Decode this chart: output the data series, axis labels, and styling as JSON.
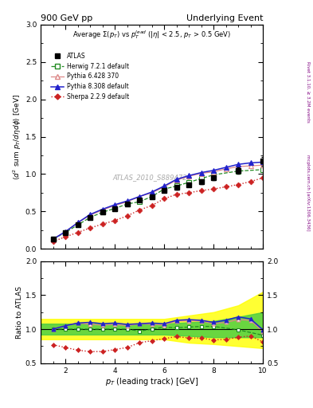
{
  "title_top": "900 GeV pp",
  "title_right": "Underlying Event",
  "xlabel": "$p_T$ (leading track) [GeV]",
  "ylabel_main": "$\\langle d^2$ sum $p_T/d\\eta d\\phi\\rangle$ [GeV]",
  "ylabel_ratio": "Ratio to ATLAS",
  "watermark": "ATLAS_2010_S8894728",
  "right_label": "mcplots.cern.ch [arXiv:1306.3436]",
  "right_label2": "Rivet 3.1.10, ≥ 3.2M events",
  "xlim": [
    1,
    10
  ],
  "ylim_main": [
    0,
    3
  ],
  "ylim_ratio": [
    0.5,
    2.0
  ],
  "atlas_x": [
    1.5,
    2.0,
    2.5,
    3.0,
    3.5,
    4.0,
    4.5,
    5.0,
    5.5,
    6.0,
    6.5,
    7.0,
    7.5,
    8.0,
    9.0,
    10.0
  ],
  "atlas_y": [
    0.13,
    0.22,
    0.32,
    0.42,
    0.49,
    0.54,
    0.6,
    0.65,
    0.7,
    0.78,
    0.82,
    0.86,
    0.9,
    0.95,
    1.05,
    1.17
  ],
  "atlas_yerr": [
    0.01,
    0.01,
    0.01,
    0.01,
    0.01,
    0.01,
    0.015,
    0.02,
    0.02,
    0.025,
    0.025,
    0.03,
    0.03,
    0.03,
    0.04,
    0.06
  ],
  "herwig_x": [
    1.5,
    2.0,
    2.5,
    3.0,
    3.5,
    4.0,
    4.5,
    5.0,
    5.5,
    6.0,
    6.5,
    7.0,
    7.5,
    8.0,
    9.0,
    10.0
  ],
  "herwig_y": [
    0.13,
    0.22,
    0.32,
    0.42,
    0.49,
    0.54,
    0.6,
    0.63,
    0.7,
    0.8,
    0.84,
    0.89,
    0.94,
    0.99,
    1.04,
    1.06
  ],
  "pythia6_x": [
    1.5,
    2.0,
    2.5,
    3.0,
    3.5,
    4.0,
    4.5,
    5.0,
    5.5,
    6.0,
    6.5,
    7.0,
    7.5,
    8.0,
    8.5,
    9.0,
    9.5,
    10.0
  ],
  "pythia6_y": [
    0.13,
    0.23,
    0.35,
    0.45,
    0.52,
    0.58,
    0.63,
    0.7,
    0.75,
    0.83,
    0.92,
    0.97,
    1.01,
    1.03,
    1.07,
    1.1,
    1.11,
    1.12
  ],
  "pythia8_x": [
    1.5,
    2.0,
    2.5,
    3.0,
    3.5,
    4.0,
    4.5,
    5.0,
    5.5,
    6.0,
    6.5,
    7.0,
    7.5,
    8.0,
    8.5,
    9.0,
    9.5,
    10.0
  ],
  "pythia8_y": [
    0.13,
    0.23,
    0.35,
    0.46,
    0.53,
    0.59,
    0.64,
    0.7,
    0.76,
    0.84,
    0.93,
    0.98,
    1.02,
    1.05,
    1.09,
    1.13,
    1.15,
    1.16
  ],
  "sherpa_x": [
    1.5,
    2.0,
    2.5,
    3.0,
    3.5,
    4.0,
    4.5,
    5.0,
    5.5,
    6.0,
    6.5,
    7.0,
    7.5,
    8.0,
    8.5,
    9.0,
    9.5,
    10.0
  ],
  "sherpa_y": [
    0.1,
    0.16,
    0.22,
    0.28,
    0.33,
    0.38,
    0.44,
    0.52,
    0.58,
    0.67,
    0.73,
    0.75,
    0.78,
    0.8,
    0.83,
    0.86,
    0.9,
    0.95
  ],
  "ratio_herwig_x": [
    1.5,
    2.0,
    2.5,
    3.0,
    3.5,
    4.0,
    4.5,
    5.0,
    5.5,
    6.0,
    6.5,
    7.0,
    7.5,
    8.0,
    9.0,
    10.0
  ],
  "ratio_herwig_y": [
    1.0,
    1.0,
    1.0,
    1.0,
    1.0,
    1.0,
    1.0,
    0.97,
    1.0,
    1.03,
    1.02,
    1.03,
    1.04,
    1.04,
    0.99,
    0.91
  ],
  "ratio_pythia6_x": [
    1.5,
    2.0,
    2.5,
    3.0,
    3.5,
    4.0,
    4.5,
    5.0,
    5.5,
    6.0,
    6.5,
    7.0,
    7.5,
    8.0,
    8.5,
    9.0,
    9.5,
    10.0
  ],
  "ratio_pythia6_y": [
    1.0,
    1.05,
    1.09,
    1.07,
    1.06,
    1.07,
    1.05,
    1.08,
    1.07,
    1.06,
    1.12,
    1.12,
    1.12,
    1.08,
    1.1,
    1.14,
    1.13,
    0.96
  ],
  "ratio_pythia8_x": [
    1.5,
    2.0,
    2.5,
    3.0,
    3.5,
    4.0,
    4.5,
    5.0,
    5.5,
    6.0,
    6.5,
    7.0,
    7.5,
    8.0,
    8.5,
    9.0,
    9.5,
    10.0
  ],
  "ratio_pythia8_y": [
    1.0,
    1.05,
    1.09,
    1.1,
    1.08,
    1.09,
    1.07,
    1.08,
    1.09,
    1.08,
    1.13,
    1.14,
    1.13,
    1.1,
    1.13,
    1.18,
    1.15,
    0.99
  ],
  "ratio_sherpa_x": [
    1.5,
    2.0,
    2.5,
    3.0,
    3.5,
    4.0,
    4.5,
    5.0,
    5.5,
    6.0,
    6.5,
    7.0,
    7.5,
    8.0,
    8.5,
    9.0,
    9.5,
    10.0
  ],
  "ratio_sherpa_y": [
    0.77,
    0.73,
    0.69,
    0.67,
    0.67,
    0.7,
    0.73,
    0.8,
    0.83,
    0.86,
    0.89,
    0.87,
    0.87,
    0.84,
    0.85,
    0.88,
    0.9,
    0.81
  ],
  "herwig_color": "#228B22",
  "pythia6_color": "#dd8888",
  "pythia8_color": "#2222cc",
  "sherpa_color": "#cc2222",
  "atlas_color": "#000000"
}
